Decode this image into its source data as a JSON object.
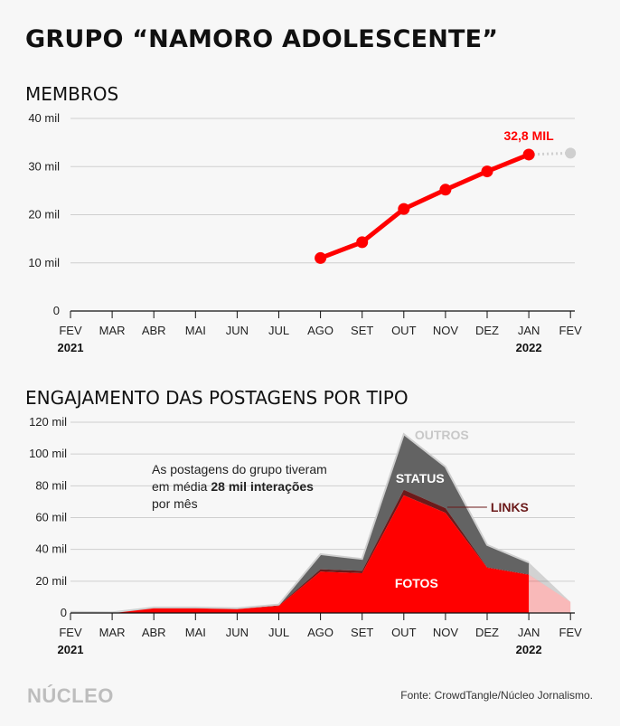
{
  "title": "GRUPO “NAMORO ADOLESCENTE”",
  "sections": {
    "members_title": "MEMBROS",
    "engagement_title": "ENGAJAMENTO DAS POSTAGENS POR TIPO"
  },
  "note": {
    "part1": "As postagens do grupo tiveram em média ",
    "bold1": "28 mil interações",
    "part2": " por mês"
  },
  "footer": {
    "logo": "NÚCLEO",
    "source": "Fonte: CrowdTangle/Núcleo Jornalismo."
  },
  "colors": {
    "red": "#ff0000",
    "dark_red": "#6b1a1a",
    "gray": "#636363",
    "light_gray": "#cfcfcf",
    "grid": "#cfcfcf"
  },
  "chart_data": [
    {
      "type": "line",
      "x": [
        "FEV",
        "MAR",
        "ABR",
        "MAI",
        "JUN",
        "JUL",
        "AGO",
        "SET",
        "OUT",
        "NOV",
        "DEZ",
        "JAN",
        "FEV"
      ],
      "year_labels": [
        {
          "label": "2021",
          "at": 0
        },
        {
          "label": "2022",
          "at": 11
        }
      ],
      "y_ticks": [
        "0",
        "10 mil",
        "20 mil",
        "30 mil",
        "40 mil"
      ],
      "ylim": [
        0,
        40000
      ],
      "series": [
        {
          "values": [
            null,
            null,
            null,
            null,
            null,
            null,
            11000,
            14300,
            21200,
            25200,
            29000,
            32500,
            32800
          ]
        }
      ],
      "annotation": "32,8 MIL",
      "projected_last_point": true,
      "grid": true
    },
    {
      "type": "area",
      "x": [
        "FEV",
        "MAR",
        "ABR",
        "MAI",
        "JUN",
        "JUL",
        "AGO",
        "SET",
        "OUT",
        "NOV",
        "DEZ",
        "JAN",
        "FEV"
      ],
      "year_labels": [
        {
          "label": "2021",
          "at": 0
        },
        {
          "label": "2022",
          "at": 11
        }
      ],
      "y_ticks": [
        "0",
        "20 mil",
        "40 mil",
        "60 mil",
        "80 mil",
        "100 mil",
        "120 mil"
      ],
      "ylim": [
        0,
        120000
      ],
      "stacked": true,
      "series": [
        {
          "name": "FOTOS",
          "values": [
            500,
            300,
            3000,
            3000,
            2500,
            4500,
            26000,
            25000,
            74000,
            63000,
            28500,
            24000,
            7000
          ]
        },
        {
          "name": "LINKS",
          "values": [
            0,
            0,
            200,
            200,
            200,
            300,
            1500,
            1500,
            3500,
            3000,
            300,
            300,
            0
          ]
        },
        {
          "name": "STATUS",
          "values": [
            200,
            100,
            300,
            300,
            300,
            500,
            9500,
            7500,
            35000,
            26000,
            14000,
            7500,
            0
          ]
        },
        {
          "name": "OUTROS",
          "values": [
            0,
            0,
            0,
            0,
            0,
            0,
            0,
            0,
            0,
            0,
            0,
            0,
            0
          ]
        }
      ],
      "grid": true
    }
  ]
}
